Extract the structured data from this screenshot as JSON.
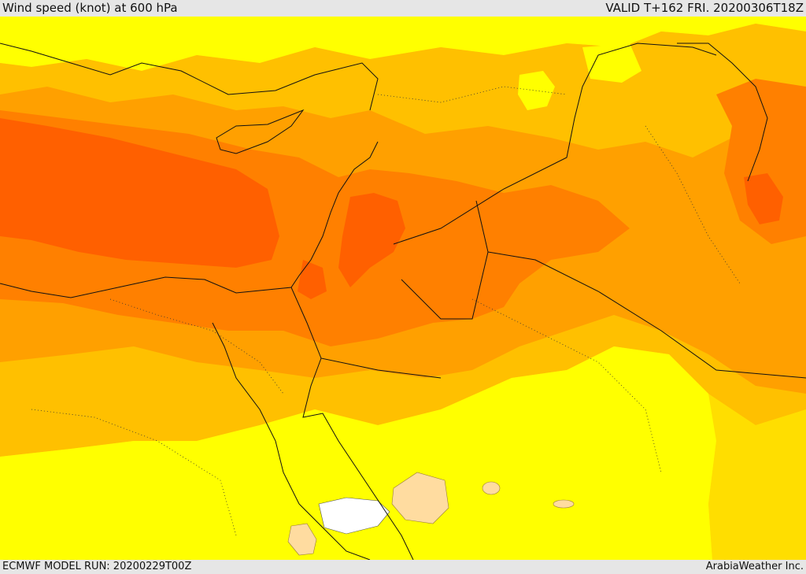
{
  "header": {
    "title": "Wind speed (knot) at 600 hPa",
    "valid": "VALID T+162 FRI. 20200306T18Z"
  },
  "footer": {
    "model_run": "ECMWF MODEL RUN: 20200229T00Z",
    "credit": "ArabiaWeather Inc."
  },
  "colors": {
    "yellow": "#ffff00",
    "gold": "#ffde00",
    "amber": "#ffc000",
    "orange_light": "#ffa000",
    "orange": "#ff8000",
    "orange_deep": "#ff6000",
    "peach": "#ffdca0",
    "white": "#ffffff"
  }
}
